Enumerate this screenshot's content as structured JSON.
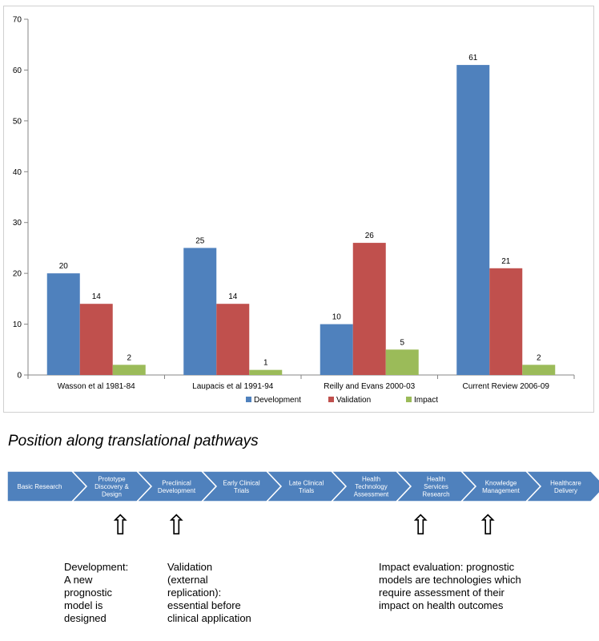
{
  "chart_data": {
    "type": "bar",
    "categories": [
      "Wasson et al 1981-84",
      "Laupacis et al 1991-94",
      "Reilly and Evans 2000-03",
      "Current Review 2006-09"
    ],
    "series": [
      {
        "name": "Development",
        "values": [
          20,
          25,
          10,
          61
        ],
        "color": "#4F81BD"
      },
      {
        "name": "Validation",
        "values": [
          14,
          14,
          26,
          21
        ],
        "color": "#C0504D"
      },
      {
        "name": "Impact",
        "values": [
          2,
          1,
          5,
          2
        ],
        "color": "#9BBB59"
      }
    ],
    "ylim": [
      0,
      70
    ],
    "yticks": [
      0,
      10,
      20,
      30,
      40,
      50,
      60,
      70
    ],
    "grid": false,
    "legend": "bottom"
  },
  "pathway": {
    "title": "Position along translational pathways",
    "stages": [
      [
        "Basic Research"
      ],
      [
        "Prototype",
        "Discovery &",
        "Design"
      ],
      [
        "Preclinical",
        "Development"
      ],
      [
        "Early Clinical",
        "Trials"
      ],
      [
        "Late Clinical",
        "Trials"
      ],
      [
        "Health",
        "Technology",
        "Assessment"
      ],
      [
        "Health",
        "Services",
        "Research"
      ],
      [
        "Knowledge",
        "Management"
      ],
      [
        "Healthcare",
        "Delivery"
      ]
    ],
    "stage_color": "#4F81BD",
    "arrow_glyph": "⇧"
  },
  "notes": {
    "development": "Development:\nA new\nprognostic\nmodel is\ndesigned",
    "validation": "Validation\n(external\nreplication):\nessential before\nclinical application",
    "impact": "Impact evaluation: prognostic\nmodels are technologies which\nrequire assessment  of their\nimpact on health outcomes"
  }
}
